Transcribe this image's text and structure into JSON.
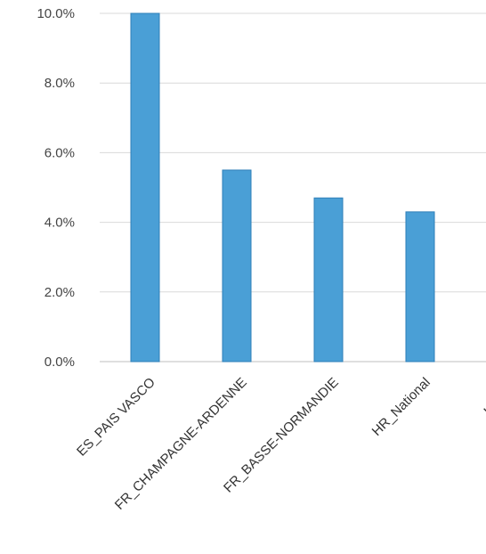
{
  "chart_data": {
    "type": "bar",
    "title": "",
    "xlabel": "",
    "ylabel": "",
    "categories": [
      "ES_PAIS VASCO",
      "FR_CHAMPAGNE-ARDENNE",
      "FR_BASSE-NORMANDIE",
      "HR_National",
      "UK_WA"
    ],
    "values": [
      10.0,
      5.5,
      4.7,
      4.3,
      null
    ],
    "ylim": [
      0,
      10
    ],
    "yticks": [
      "0.0%",
      "2.0%",
      "4.0%",
      "6.0%",
      "8.0%",
      "10.0%"
    ],
    "grid": true,
    "legend": "none",
    "colors": {
      "bar": "#4a9fd6",
      "bar_edge": "#2e7fb8",
      "grid": "#d9d9d9",
      "axis": "#bfbfbf"
    }
  }
}
